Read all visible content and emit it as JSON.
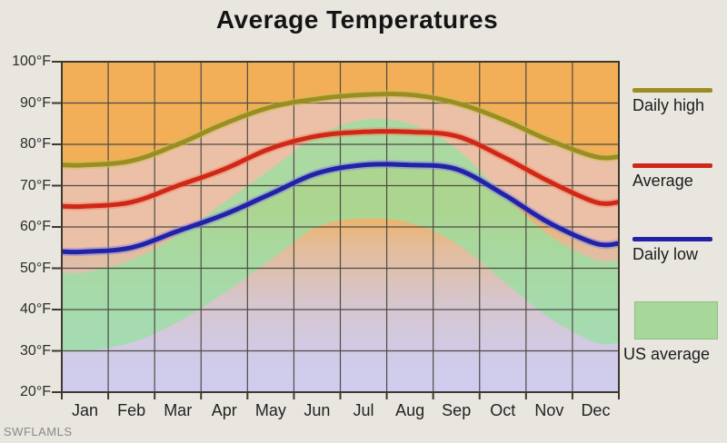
{
  "title": "Average Temperatures",
  "watermark": "SWFLAMLS",
  "y_axis": {
    "labels": [
      "100°F",
      "90°F",
      "80°F",
      "70°F",
      "60°F",
      "50°F",
      "40°F",
      "30°F",
      "20°F"
    ]
  },
  "legend": {
    "items": [
      {
        "label": "Daily high",
        "swatch": "line",
        "color": "#9a8e22"
      },
      {
        "label": "Average",
        "swatch": "line",
        "color": "#d02818"
      },
      {
        "label": "Daily low",
        "swatch": "line",
        "color": "#2122a6"
      },
      {
        "label": "US average",
        "swatch": "box",
        "color": "#a8d79a"
      }
    ]
  },
  "colors": {
    "page_background": "#e9e6e0",
    "plot_background": "#f2af58",
    "local_band": "rgba(232,203,218,0.6)",
    "us_band": "rgba(150,225,160,0.76)",
    "below_low_fill": "#cdcef8",
    "grid": "#4e4c42",
    "border": "#3d392e",
    "daily_high_line": "#9a8e22",
    "daily_high_halo": "rgba(200,190,80,0.45)",
    "average_line": "#d02818",
    "average_halo": "rgba(240,130,100,0.45)",
    "daily_low_line": "#2122a6",
    "daily_low_halo": "rgba(130,128,225,0.5)"
  },
  "chart_data": {
    "type": "line",
    "title": "Average Temperatures",
    "categories": [
      "Jan",
      "Feb",
      "Mar",
      "Apr",
      "May",
      "Jun",
      "Jul",
      "Aug",
      "Sep",
      "Oct",
      "Nov",
      "Dec"
    ],
    "series": [
      {
        "name": "Daily high",
        "values": [
          75,
          76,
          80,
          85,
          89,
          91,
          92,
          92,
          90,
          86,
          81,
          77
        ]
      },
      {
        "name": "Average",
        "values": [
          65,
          66,
          70,
          74,
          79,
          82,
          83,
          83,
          82,
          77,
          71,
          66
        ]
      },
      {
        "name": "Daily low",
        "values": [
          54,
          55,
          59,
          63,
          68,
          73,
          75,
          75,
          74,
          68,
          61,
          56
        ]
      },
      {
        "name": "US average daily high",
        "values": [
          49,
          52,
          58,
          66,
          74,
          82,
          86,
          85,
          79,
          68,
          58,
          52
        ]
      },
      {
        "name": "US average daily low",
        "values": [
          30,
          32,
          37,
          44,
          52,
          60,
          62,
          61,
          56,
          47,
          38,
          32
        ]
      }
    ],
    "ylim": [
      20,
      100
    ],
    "ytick_step": 10,
    "xtick_labels_between_ticks": true,
    "grid": true,
    "legend_position": "right"
  }
}
